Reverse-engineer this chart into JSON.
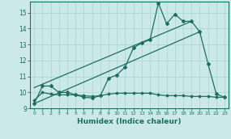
{
  "xlabel": "Humidex (Indice chaleur)",
  "background_color": "#cce9e9",
  "grid_color": "#b0d8d8",
  "line_color": "#1e6e62",
  "xlim": [
    -0.5,
    23.5
  ],
  "ylim": [
    9,
    15.7
  ],
  "yticks": [
    9,
    10,
    11,
    12,
    13,
    14,
    15
  ],
  "xticks": [
    0,
    1,
    2,
    3,
    4,
    5,
    6,
    7,
    8,
    9,
    10,
    11,
    12,
    13,
    14,
    15,
    16,
    17,
    18,
    19,
    20,
    21,
    22,
    23
  ],
  "main_x": [
    0,
    1,
    2,
    3,
    4,
    5,
    6,
    7,
    8,
    9,
    10,
    11,
    12,
    13,
    14,
    15,
    16,
    17,
    18,
    19,
    20,
    21,
    22,
    23
  ],
  "main_y": [
    9.3,
    10.4,
    10.4,
    10.0,
    10.0,
    9.85,
    9.7,
    9.65,
    9.8,
    10.9,
    11.1,
    11.6,
    12.8,
    13.1,
    13.3,
    15.6,
    14.3,
    14.9,
    14.45,
    14.45,
    13.8,
    11.8,
    9.9,
    9.7
  ],
  "trend1_x": [
    0,
    20
  ],
  "trend1_y": [
    9.3,
    13.8
  ],
  "trend2_x": [
    0,
    19
  ],
  "trend2_y": [
    10.3,
    14.45
  ],
  "flat_x": [
    0,
    1,
    2,
    3,
    4,
    5,
    6,
    7,
    8,
    9,
    10,
    11,
    12,
    13,
    14,
    15,
    16,
    17,
    18,
    19,
    20,
    21,
    22,
    23
  ],
  "flat_y": [
    9.5,
    10.0,
    9.9,
    9.85,
    9.85,
    9.85,
    9.8,
    9.75,
    9.8,
    9.9,
    9.95,
    9.95,
    9.95,
    9.95,
    9.95,
    9.85,
    9.8,
    9.8,
    9.8,
    9.75,
    9.75,
    9.75,
    9.7,
    9.7
  ]
}
